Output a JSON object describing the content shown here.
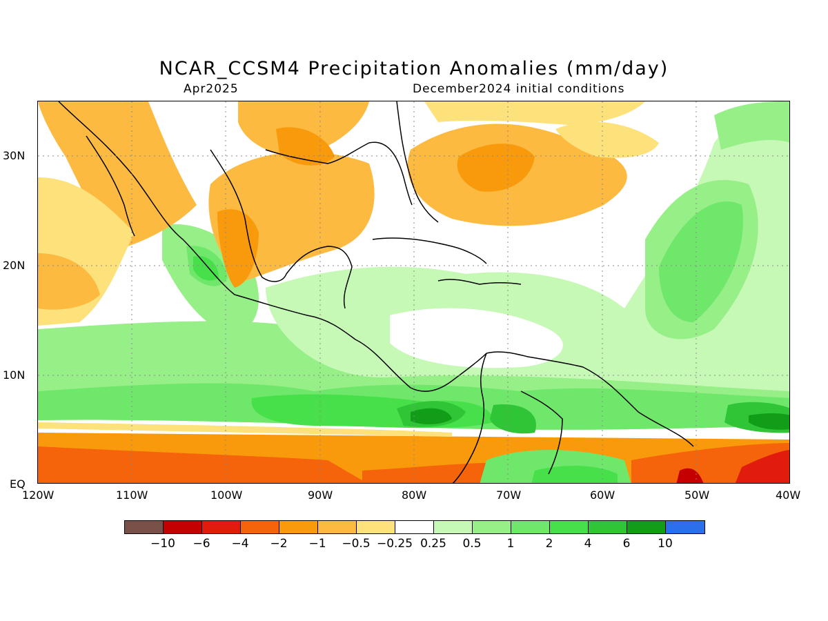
{
  "title": "NCAR_CCSM4 Precipitation Anomalies (mm/day)",
  "subtitle_left": "Apr2025",
  "subtitle_right": "December2024 initial conditions",
  "x_ticks": [
    "120W",
    "110W",
    "100W",
    "90W",
    "80W",
    "70W",
    "60W",
    "50W",
    "40W"
  ],
  "y_ticks": [
    "30N",
    "20N",
    "10N",
    "EQ"
  ],
  "legend": {
    "colors": [
      "#7a5148",
      "#c40000",
      "#e21c0c",
      "#f5640a",
      "#f99a0c",
      "#fcba41",
      "#fde17a",
      "#ffffff",
      "#c6f9b6",
      "#97ef88",
      "#6fe76b",
      "#48e04a",
      "#2fc536",
      "#119d17",
      "#2b6fed"
    ],
    "labels": [
      "−10",
      "−6",
      "−4",
      "−2",
      "−1",
      "−0.5",
      "−0.25",
      "0.25",
      "0.5",
      "1",
      "2",
      "4",
      "6",
      "10"
    ]
  }
}
